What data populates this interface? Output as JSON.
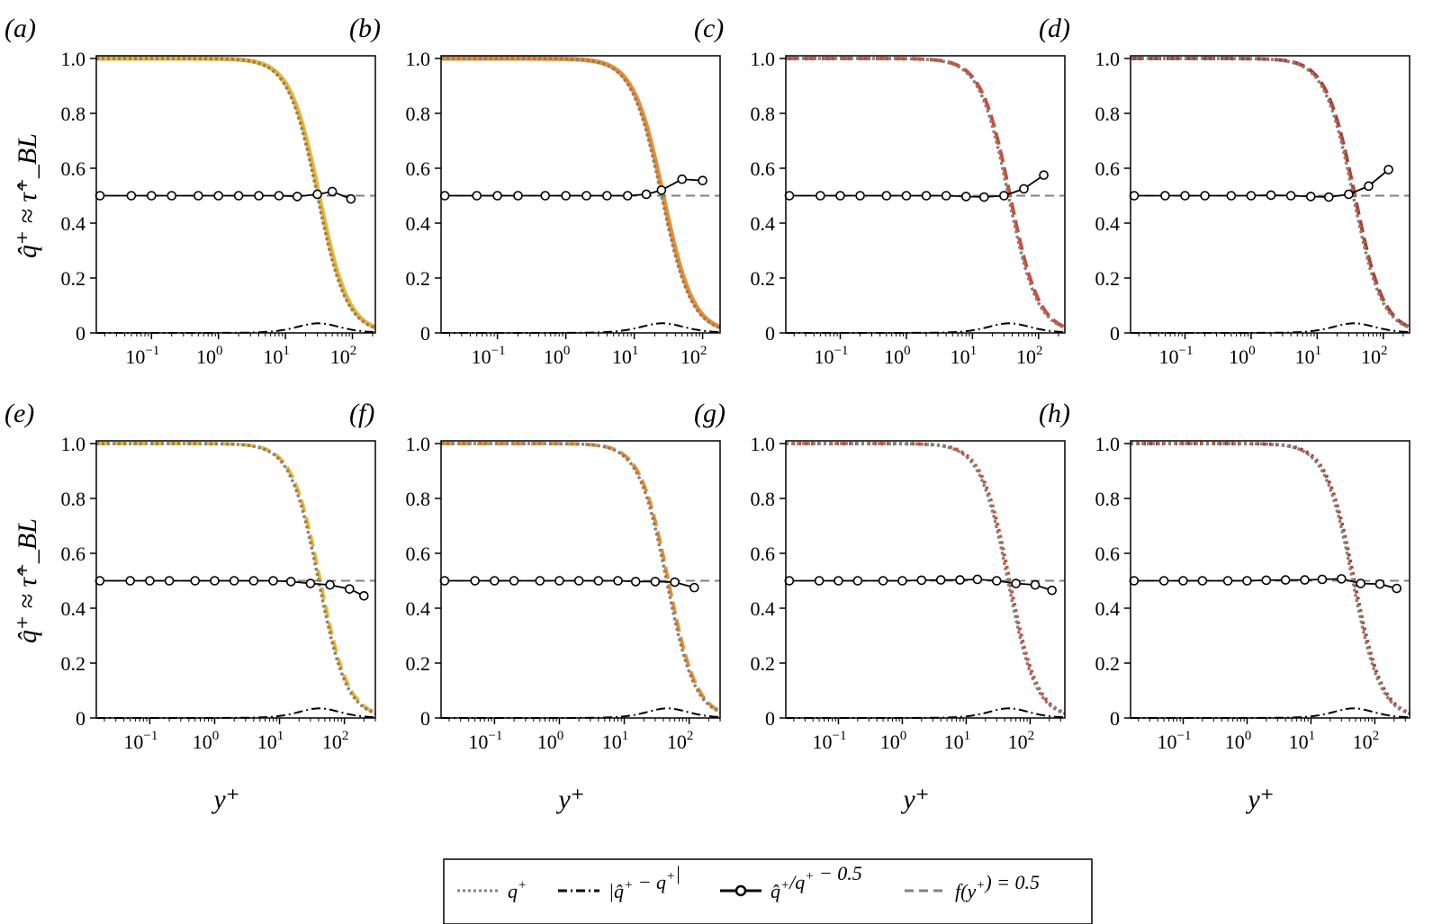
{
  "figure": {
    "ylabel": "q̂⁺ ≈ τ̂⁺_BL",
    "xlabel": "y⁺",
    "ytick_labels": [
      "0",
      "0.2",
      "0.4",
      "0.6",
      "0.8",
      "1.0"
    ],
    "xtick_labels": [
      "10⁻¹",
      "10⁰",
      "10¹",
      "10²"
    ],
    "legend": [
      {
        "label": "q⁺",
        "style": "dotted",
        "color": "#808080"
      },
      {
        "label": "|q̂⁺ − q⁺|",
        "style": "dashdot",
        "color": "#000000"
      },
      {
        "label": "q̂⁺/q⁺ − 0.5",
        "style": "solid-circle",
        "color": "#000000"
      },
      {
        "label": "f(y⁺) = 0.5",
        "style": "dashed",
        "color": "#808080"
      }
    ]
  },
  "chart_data": [
    {
      "panel": "(a)",
      "type": "line",
      "xscale": "log",
      "xlim": [
        0.015,
        220
      ],
      "ylim": [
        0,
        1
      ],
      "model_color": "#F2B32A",
      "model_style": "solid",
      "q_delta": 30,
      "ratio": {
        "x": [
          0.017,
          0.05,
          0.1,
          0.2,
          0.5,
          1,
          2,
          4,
          8,
          15,
          30,
          50,
          95
        ],
        "y": [
          0.5,
          0.5,
          0.5,
          0.5,
          0.5,
          0.5,
          0.5,
          0.5,
          0.5,
          0.497,
          0.505,
          0.515,
          0.488
        ]
      }
    },
    {
      "panel": "(b)",
      "type": "line",
      "xscale": "log",
      "xlim": [
        0.015,
        180
      ],
      "ylim": [
        0,
        1
      ],
      "model_color": "#F28C28",
      "model_style": "solid",
      "q_delta": 25,
      "ratio": {
        "x": [
          0.017,
          0.05,
          0.1,
          0.2,
          0.5,
          1,
          2,
          4,
          8,
          15,
          25,
          50,
          100
        ],
        "y": [
          0.5,
          0.5,
          0.5,
          0.5,
          0.5,
          0.5,
          0.5,
          0.5,
          0.5,
          0.505,
          0.52,
          0.56,
          0.555
        ]
      }
    },
    {
      "panel": "(c)",
      "type": "line",
      "xscale": "log",
      "xlim": [
        0.015,
        250
      ],
      "ylim": [
        0,
        1
      ],
      "model_color": "#D9452A",
      "model_style": "dashed",
      "q_delta": 35,
      "ratio": {
        "x": [
          0.017,
          0.05,
          0.1,
          0.2,
          0.5,
          1,
          2,
          4,
          8,
          15,
          30,
          60,
          120
        ],
        "y": [
          0.5,
          0.5,
          0.5,
          0.5,
          0.5,
          0.5,
          0.5,
          0.5,
          0.497,
          0.495,
          0.5,
          0.525,
          0.575
        ]
      }
    },
    {
      "panel": "(d)",
      "type": "line",
      "xscale": "log",
      "xlim": [
        0.015,
        250
      ],
      "ylim": [
        0,
        1
      ],
      "model_color": "#B83A24",
      "model_style": "dashed",
      "q_delta": 35,
      "ratio": {
        "x": [
          0.017,
          0.05,
          0.1,
          0.2,
          0.5,
          1,
          2,
          4,
          8,
          15,
          30,
          60,
          120
        ],
        "y": [
          0.5,
          0.5,
          0.5,
          0.5,
          0.5,
          0.5,
          0.502,
          0.5,
          0.497,
          0.495,
          0.505,
          0.535,
          0.595
        ]
      }
    },
    {
      "panel": "(e)",
      "type": "line",
      "xscale": "log",
      "xlim": [
        0.015,
        300
      ],
      "ylim": [
        0,
        1
      ],
      "model_color": "#F2B32A",
      "model_style": "dashed",
      "q_delta": 40,
      "ratio": {
        "x": [
          0.017,
          0.05,
          0.1,
          0.2,
          0.5,
          1,
          2,
          4,
          8,
          15,
          30,
          60,
          120,
          200
        ],
        "y": [
          0.5,
          0.5,
          0.5,
          0.5,
          0.5,
          0.5,
          0.5,
          0.5,
          0.5,
          0.497,
          0.49,
          0.485,
          0.47,
          0.445
        ]
      }
    },
    {
      "panel": "(f)",
      "type": "line",
      "xscale": "log",
      "xlim": [
        0.015,
        300
      ],
      "ylim": [
        0,
        1
      ],
      "model_color": "#F28C28",
      "model_style": "dashed",
      "q_delta": 45,
      "ratio": {
        "x": [
          0.017,
          0.05,
          0.1,
          0.2,
          0.5,
          1,
          2,
          4,
          8,
          15,
          30,
          60,
          120
        ],
        "y": [
          0.5,
          0.5,
          0.5,
          0.5,
          0.5,
          0.5,
          0.5,
          0.5,
          0.5,
          0.497,
          0.497,
          0.495,
          0.475
        ]
      }
    },
    {
      "panel": "(g)",
      "type": "line",
      "xscale": "log",
      "xlim": [
        0.015,
        350
      ],
      "ylim": [
        0,
        1
      ],
      "model_color": "#D9452A",
      "model_style": "dotted",
      "q_delta": 45,
      "ratio": {
        "x": [
          0.017,
          0.05,
          0.1,
          0.2,
          0.5,
          1,
          2,
          4,
          8,
          15,
          30,
          60,
          120,
          220
        ],
        "y": [
          0.5,
          0.5,
          0.5,
          0.5,
          0.5,
          0.5,
          0.502,
          0.503,
          0.503,
          0.505,
          0.5,
          0.49,
          0.485,
          0.465
        ]
      }
    },
    {
      "panel": "(h)",
      "type": "line",
      "xscale": "log",
      "xlim": [
        0.015,
        350
      ],
      "ylim": [
        0,
        1
      ],
      "model_color": "#B83A24",
      "model_style": "dotted",
      "q_delta": 45,
      "ratio": {
        "x": [
          0.017,
          0.05,
          0.1,
          0.2,
          0.5,
          1,
          2,
          4,
          8,
          15,
          30,
          60,
          120,
          220
        ],
        "y": [
          0.5,
          0.5,
          0.5,
          0.5,
          0.5,
          0.5,
          0.502,
          0.503,
          0.503,
          0.505,
          0.507,
          0.49,
          0.488,
          0.472
        ]
      }
    }
  ]
}
